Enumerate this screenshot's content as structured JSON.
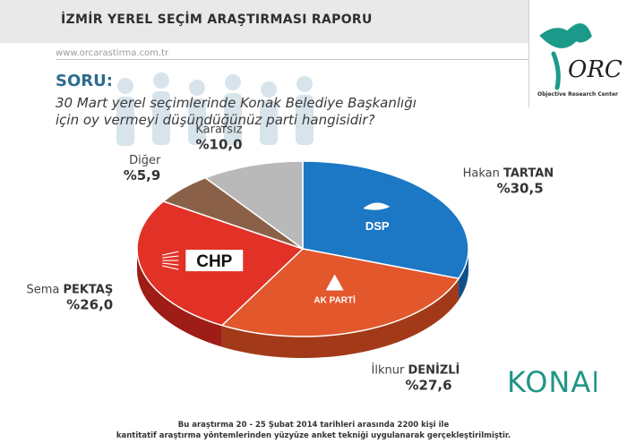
{
  "header": {
    "title": "İZMİR YEREL SEÇİM ARAŞTIRMASI RAPORU",
    "website": "www.orcarastirma.com.tr"
  },
  "question": {
    "label": "SORU:",
    "line1": "30 Mart yerel seçimlerinde Konak Belediye Başkanlığı",
    "line2": "için oy vermeyi düşündüğünüz parti hangisidir?"
  },
  "logo": {
    "text": "ORC",
    "tagline": "Objective Research Center"
  },
  "brand": {
    "text": "KONAK"
  },
  "footer": {
    "line1": "Bu araştırma 20 - 25 Şubat 2014 tarihleri arasında  2200 kişi ile",
    "line2": "kantitatif araştırma yöntemlerinden yüzyüze anket tekniği  uygulanarak gerçekleştirilmiştir."
  },
  "chart_data": {
    "type": "pie",
    "series": [
      {
        "first": "Hakan",
        "last": "TARTAN",
        "party": "DSP",
        "value": 30.5,
        "label": "%30,5",
        "color": "#1c78c4",
        "side": "#0f4f8c"
      },
      {
        "first": "İlknur",
        "last": "DENİZLİ",
        "party": "AK PARTİ",
        "value": 27.6,
        "label": "%27,6",
        "color": "#e2572c",
        "side": "#a23a1a"
      },
      {
        "first": "Sema",
        "last": "PEKTAŞ",
        "party": "CHP",
        "value": 26.0,
        "label": "%26,0",
        "color": "#e23127",
        "side": "#9e1d17"
      },
      {
        "first": "Diğer",
        "last": "",
        "party": "",
        "value": 5.9,
        "label": "%5,9",
        "color": "#8a6148",
        "side": "#5e412f"
      },
      {
        "first": "Kararsız",
        "last": "",
        "party": "",
        "value": 10.0,
        "label": "%10,0",
        "color": "#b9b9b9",
        "side": "#878787"
      }
    ]
  }
}
